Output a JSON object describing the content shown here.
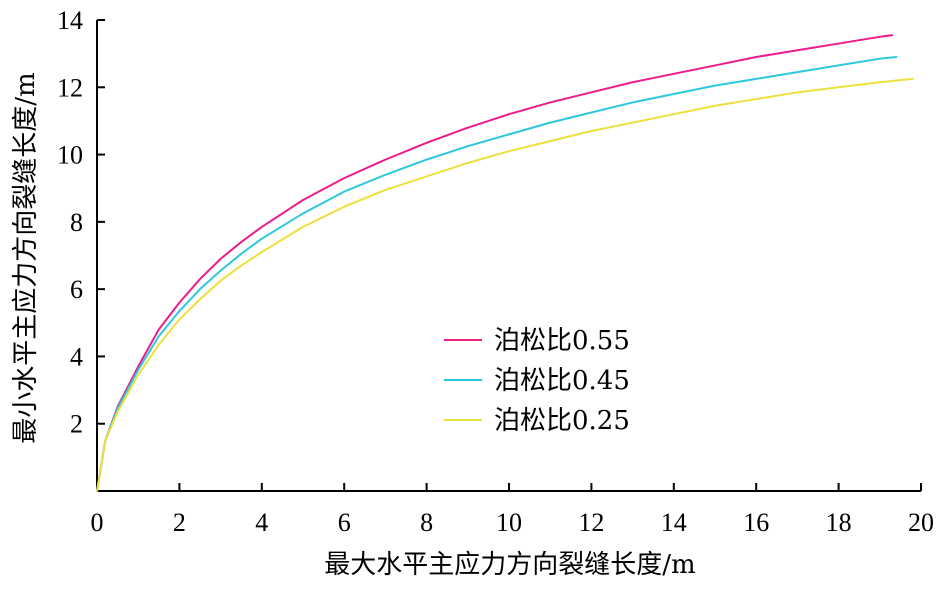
{
  "chart_data": {
    "type": "line",
    "xlabel": "最大水平主应力方向裂缝长度/m",
    "ylabel": "最小水平主应力方向裂缝长度/m",
    "xlim": [
      0,
      20
    ],
    "ylim": [
      0,
      14
    ],
    "x_ticks": [
      0,
      2,
      4,
      6,
      8,
      10,
      12,
      14,
      16,
      18,
      20
    ],
    "y_ticks": [
      2,
      4,
      6,
      8,
      10,
      12,
      14
    ],
    "grid": false,
    "legend_position": "center-right",
    "series": [
      {
        "name": "泊松比0.55",
        "color": "#ec1c8c",
        "x": [
          0,
          0.2,
          0.5,
          1,
          1.5,
          2,
          2.5,
          3,
          3.5,
          4,
          5,
          6,
          7,
          8,
          9,
          10,
          11,
          12,
          13,
          14,
          15,
          16,
          17,
          18,
          19,
          19.3
        ],
        "y": [
          0,
          1.5,
          2.5,
          3.7,
          4.8,
          5.6,
          6.3,
          6.9,
          7.4,
          7.85,
          8.65,
          9.3,
          9.85,
          10.35,
          10.8,
          11.2,
          11.55,
          11.85,
          12.15,
          12.4,
          12.65,
          12.9,
          13.1,
          13.3,
          13.5,
          13.55
        ]
      },
      {
        "name": "泊松比0.45",
        "color": "#2ec8dc",
        "x": [
          0,
          0.2,
          0.5,
          1,
          1.5,
          2,
          2.5,
          3,
          3.5,
          4,
          5,
          6,
          7,
          8,
          9,
          10,
          11,
          12,
          13,
          14,
          15,
          16,
          17,
          18,
          19,
          19.4
        ],
        "y": [
          0,
          1.5,
          2.45,
          3.6,
          4.6,
          5.35,
          6.0,
          6.55,
          7.05,
          7.5,
          8.25,
          8.9,
          9.4,
          9.85,
          10.25,
          10.6,
          10.95,
          11.25,
          11.55,
          11.8,
          12.05,
          12.25,
          12.45,
          12.65,
          12.85,
          12.9
        ]
      },
      {
        "name": "泊松比0.25",
        "color": "#ece03c",
        "x": [
          0,
          0.2,
          0.5,
          1,
          1.5,
          2,
          2.5,
          3,
          3.5,
          4,
          5,
          6,
          7,
          8,
          9,
          10,
          11,
          12,
          13,
          14,
          15,
          16,
          17,
          18,
          19,
          19.8
        ],
        "y": [
          0,
          1.5,
          2.35,
          3.45,
          4.35,
          5.1,
          5.7,
          6.25,
          6.7,
          7.1,
          7.85,
          8.45,
          8.95,
          9.35,
          9.75,
          10.1,
          10.4,
          10.7,
          10.95,
          11.2,
          11.45,
          11.65,
          11.85,
          12.0,
          12.15,
          12.25
        ]
      }
    ]
  }
}
